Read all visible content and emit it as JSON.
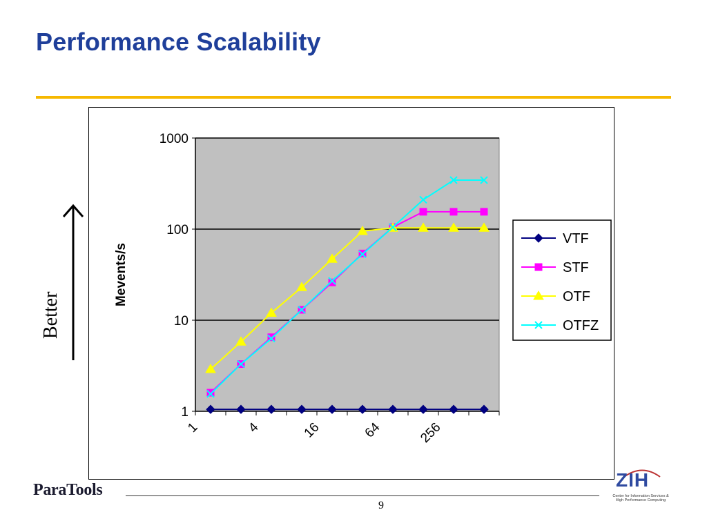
{
  "slide": {
    "title": "Performance Scalability",
    "side_label": "Better",
    "page_number": "9"
  },
  "logos": {
    "paratools": "ParaTools",
    "zih_mark": "ZIH",
    "zih_caption_line1": "Center for Information Services &",
    "zih_caption_line2": "High Performance Computing"
  },
  "colors": {
    "title": "#1f3f9a",
    "rule": "#f6b800",
    "plot_bg": "#c0c0c0",
    "VTF": "#000080",
    "STF": "#ff00ff",
    "OTF": "#ffff00",
    "OTFZ": "#00ffff"
  },
  "chart_data": {
    "type": "line",
    "title": "",
    "xlabel": "",
    "ylabel": "Mevents/s",
    "yscale": "log",
    "ylim": [
      1,
      1000
    ],
    "y_ticks": [
      "1",
      "10",
      "100",
      "1000"
    ],
    "x_tick_labels": [
      "1",
      "4",
      "16",
      "64",
      "256"
    ],
    "x": [
      1,
      2,
      4,
      8,
      16,
      32,
      64,
      128,
      256,
      512
    ],
    "grid": "horizontal major lines",
    "legend": "right",
    "series": [
      {
        "name": "VTF",
        "marker": "diamond",
        "values": [
          1.05,
          1.05,
          1.05,
          1.05,
          1.05,
          1.05,
          1.05,
          1.05,
          1.05,
          1.05
        ]
      },
      {
        "name": "STF",
        "marker": "square",
        "values": [
          1.6,
          3.3,
          6.5,
          13,
          26,
          54,
          105,
          155,
          155,
          155
        ]
      },
      {
        "name": "OTF",
        "marker": "triangle",
        "values": [
          2.9,
          5.8,
          12,
          23,
          47,
          95,
          103,
          103,
          103,
          103
        ]
      },
      {
        "name": "OTFZ",
        "marker": "x",
        "values": [
          1.55,
          3.3,
          6.3,
          13,
          27,
          53,
          105,
          210,
          345,
          345
        ]
      }
    ]
  }
}
